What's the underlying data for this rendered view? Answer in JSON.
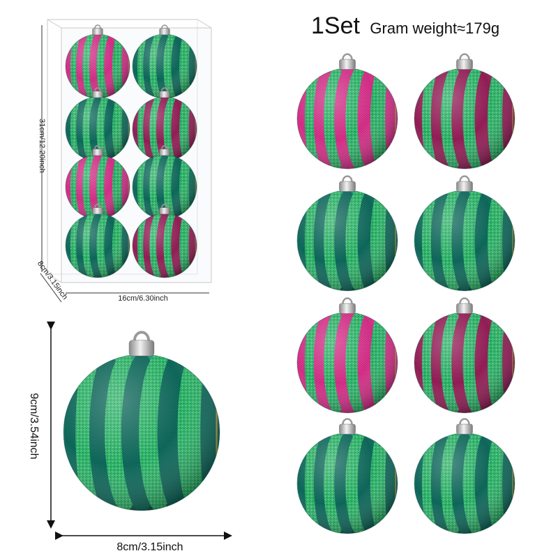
{
  "title": {
    "set_label": "1Set",
    "weight_label": "Gram weight≈179g"
  },
  "box_dimensions": {
    "height_label": "31cm/12.20inch",
    "width_label": "16cm/6.30inch",
    "depth_label": "8cm/3.15inch"
  },
  "single_ball_dimensions": {
    "height_label": "9cm/3.54inch",
    "width_label": "8cm/3.15inch"
  },
  "ornaments": {
    "count_in_set": 8,
    "pattern_sequence": [
      "pink",
      "magenta",
      "teal",
      "teal",
      "pink",
      "magenta",
      "teal",
      "teal"
    ],
    "colors": {
      "teal": "#1f9c86",
      "teal_dark": "#0f6e60",
      "pink": "#e0318f",
      "magenta": "#9c1f5b",
      "glitter": "#2fc070",
      "gold": "#d8b24a",
      "cap": "#c8c8c8"
    }
  }
}
